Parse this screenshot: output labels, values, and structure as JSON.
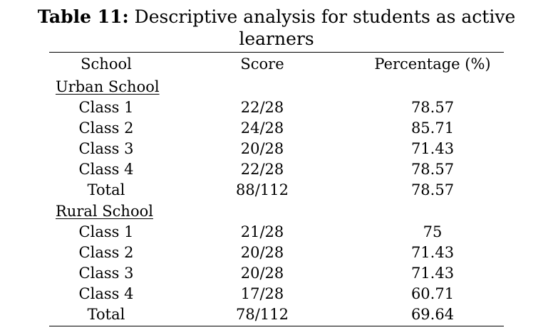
{
  "caption": {
    "label": "Table 11:",
    "text": " Descriptive analysis for students as active",
    "text_line2": "learners"
  },
  "table": {
    "headers": [
      "School",
      "Score",
      "Percentage (%)"
    ],
    "sections": [
      {
        "name": "Urban School",
        "rows": [
          [
            "Class 1",
            "22/28",
            "78.57"
          ],
          [
            "Class 2",
            "24/28",
            "85.71"
          ],
          [
            "Class 3",
            "20/28",
            "71.43"
          ],
          [
            "Class 4",
            "22/28",
            "78.57"
          ],
          [
            "Total",
            "88/112",
            "78.57"
          ]
        ]
      },
      {
        "name": "Rural School",
        "rows": [
          [
            "Class 1",
            "21/28",
            "75"
          ],
          [
            "Class 2",
            "20/28",
            "71.43"
          ],
          [
            "Class 3",
            "20/28",
            "71.43"
          ],
          [
            "Class 4",
            "17/28",
            "60.71"
          ],
          [
            "Total",
            "78/112",
            "69.64"
          ]
        ]
      }
    ]
  }
}
